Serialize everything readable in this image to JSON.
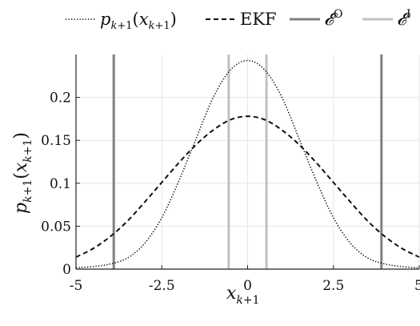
{
  "chart_data": {
    "type": "line",
    "xlabel": "x_{k+1}",
    "ylabel": "p_{k+1}(x_{k+1})",
    "xlim": [
      -5,
      5
    ],
    "ylim": [
      0,
      0.25
    ],
    "xticks": [
      -5,
      -2.5,
      0,
      2.5,
      5
    ],
    "xtick_labels": [
      "-5",
      "-2.5",
      "0",
      "2.5",
      "5"
    ],
    "yticks": [
      0,
      0.05,
      0.1,
      0.15,
      0.2
    ],
    "ytick_labels": [
      "0",
      "0.05",
      "0.1",
      "0.15",
      "0.2"
    ],
    "grid": true,
    "legend_position": "top",
    "series": [
      {
        "name": "p_{k+1}(x_{k+1})",
        "style": "dotted",
        "color": "#111111",
        "x": [
          -5,
          -4.5,
          -4,
          -3.5,
          -3,
          -2.5,
          -2,
          -1.5,
          -1,
          -0.5,
          0,
          0.5,
          1,
          1.5,
          2,
          2.5,
          3,
          3.5,
          4,
          4.5,
          5
        ],
        "y": [
          0.0015,
          0.003,
          0.006,
          0.013,
          0.03,
          0.06,
          0.103,
          0.152,
          0.2,
          0.232,
          0.243,
          0.232,
          0.2,
          0.152,
          0.103,
          0.06,
          0.03,
          0.013,
          0.006,
          0.003,
          0.0015
        ]
      },
      {
        "name": "EKF",
        "style": "dashed",
        "color": "#111111",
        "x": [
          -5,
          -4.5,
          -4,
          -3.5,
          -3,
          -2.5,
          -2,
          -1.5,
          -1,
          -0.5,
          0,
          0.5,
          1,
          1.5,
          2,
          2.5,
          3,
          3.5,
          4,
          4.5,
          5
        ],
        "y": [
          0.014,
          0.024,
          0.038,
          0.056,
          0.078,
          0.101,
          0.124,
          0.145,
          0.162,
          0.174,
          0.178,
          0.174,
          0.162,
          0.145,
          0.124,
          0.101,
          0.078,
          0.056,
          0.038,
          0.024,
          0.014
        ]
      }
    ],
    "vertical_lines": [
      {
        "name": "E^O",
        "color": "#808080",
        "x": [
          -3.9,
          3.9
        ]
      },
      {
        "name": "E^I",
        "color": "#c0c0c0",
        "x": [
          -0.55,
          0.55
        ]
      }
    ]
  }
}
